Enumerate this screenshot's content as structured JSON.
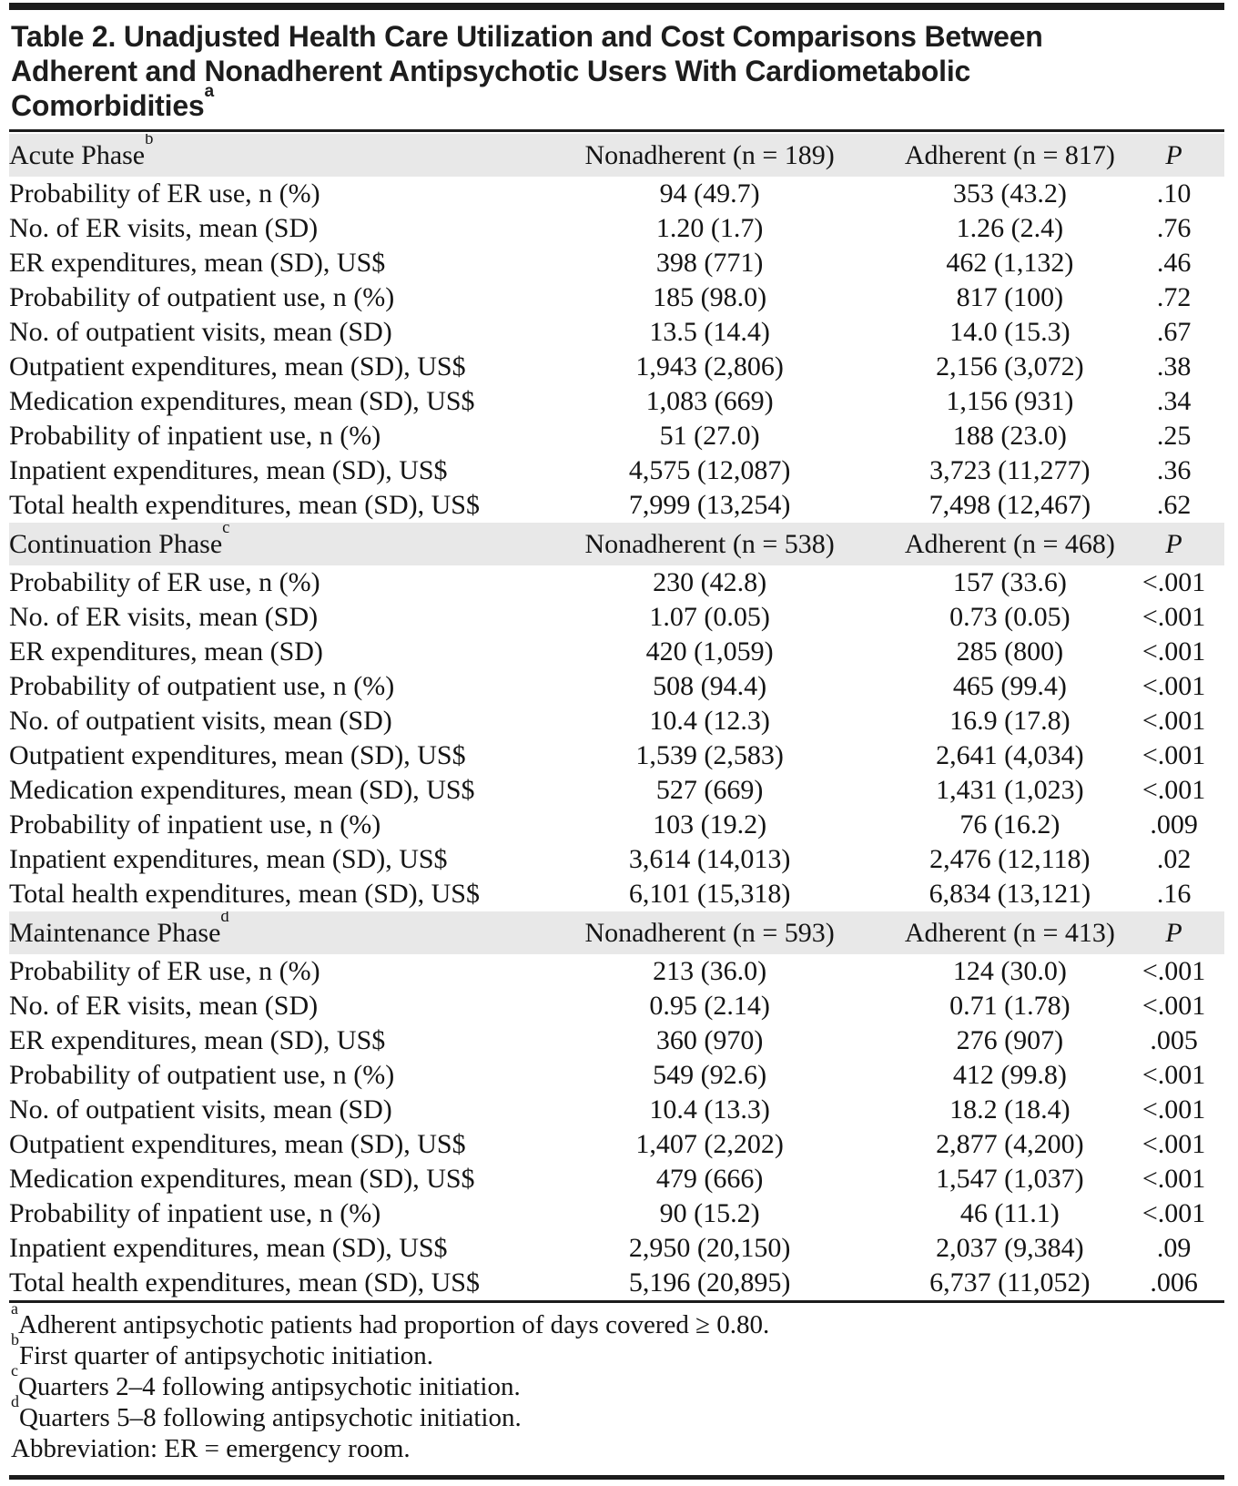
{
  "title_lines": [
    "Table 2. Unadjusted Health Care Utilization and Cost Comparisons Between",
    "Adherent and Nonadherent Antipsychotic Users With Cardiometabolic",
    "Comorbidities"
  ],
  "title_superscript": "a",
  "sections": [
    {
      "name": "Acute Phase",
      "superscript": "b",
      "nonadherent_header": "Nonadherent (n = 189)",
      "adherent_header": "Adherent (n = 817)",
      "p_header": "P",
      "rows": [
        {
          "label": "Probability of ER use, n (%)",
          "nonadherent": "94 (49.7)",
          "adherent": "353 (43.2)",
          "p": ".10"
        },
        {
          "label": "No. of ER visits, mean (SD)",
          "nonadherent": "1.20 (1.7)",
          "adherent": "1.26 (2.4)",
          "p": ".76"
        },
        {
          "label": "ER expenditures, mean (SD), US$",
          "nonadherent": "398 (771)",
          "adherent": "462 (1,132)",
          "p": ".46"
        },
        {
          "label": "Probability of outpatient use, n (%)",
          "nonadherent": "185 (98.0)",
          "adherent": "817 (100)",
          "p": ".72"
        },
        {
          "label": "No. of outpatient visits, mean (SD)",
          "nonadherent": "13.5 (14.4)",
          "adherent": "14.0 (15.3)",
          "p": ".67"
        },
        {
          "label": "Outpatient expenditures, mean (SD), US$",
          "nonadherent": "1,943 (2,806)",
          "adherent": "2,156 (3,072)",
          "p": ".38"
        },
        {
          "label": "Medication expenditures, mean (SD), US$",
          "nonadherent": "1,083 (669)",
          "adherent": "1,156 (931)",
          "p": ".34"
        },
        {
          "label": "Probability of inpatient use, n (%)",
          "nonadherent": "51 (27.0)",
          "adherent": "188 (23.0)",
          "p": ".25"
        },
        {
          "label": "Inpatient expenditures, mean (SD), US$",
          "nonadherent": "4,575 (12,087)",
          "adherent": "3,723 (11,277)",
          "p": ".36"
        },
        {
          "label": "Total health expenditures, mean (SD), US$",
          "nonadherent": "7,999 (13,254)",
          "adherent": "7,498 (12,467)",
          "p": ".62"
        }
      ]
    },
    {
      "name": "Continuation Phase",
      "superscript": "c",
      "nonadherent_header": "Nonadherent (n = 538)",
      "adherent_header": "Adherent (n = 468)",
      "p_header": "P",
      "rows": [
        {
          "label": "Probability of ER use, n (%)",
          "nonadherent": "230 (42.8)",
          "adherent": "157 (33.6)",
          "p": "<.001"
        },
        {
          "label": "No. of ER visits, mean (SD)",
          "nonadherent": "1.07 (0.05)",
          "adherent": "0.73 (0.05)",
          "p": "<.001"
        },
        {
          "label": "ER expenditures, mean (SD)",
          "nonadherent": "420 (1,059)",
          "adherent": "285 (800)",
          "p": "<.001"
        },
        {
          "label": "Probability of outpatient use, n (%)",
          "nonadherent": "508 (94.4)",
          "adherent": "465 (99.4)",
          "p": "<.001"
        },
        {
          "label": "No. of outpatient visits, mean (SD)",
          "nonadherent": "10.4 (12.3)",
          "adherent": "16.9 (17.8)",
          "p": "<.001"
        },
        {
          "label": "Outpatient expenditures, mean (SD), US$",
          "nonadherent": "1,539 (2,583)",
          "adherent": "2,641 (4,034)",
          "p": "<.001"
        },
        {
          "label": "Medication expenditures, mean (SD), US$",
          "nonadherent": "527 (669)",
          "adherent": "1,431 (1,023)",
          "p": "<.001"
        },
        {
          "label": "Probability of inpatient use, n (%)",
          "nonadherent": "103 (19.2)",
          "adherent": "76 (16.2)",
          "p": ".009"
        },
        {
          "label": "Inpatient expenditures, mean (SD), US$",
          "nonadherent": "3,614 (14,013)",
          "adherent": "2,476 (12,118)",
          "p": ".02"
        },
        {
          "label": "Total health expenditures, mean (SD), US$",
          "nonadherent": "6,101 (15,318)",
          "adherent": "6,834 (13,121)",
          "p": ".16"
        }
      ]
    },
    {
      "name": "Maintenance Phase",
      "superscript": "d",
      "nonadherent_header": "Nonadherent (n = 593)",
      "adherent_header": "Adherent (n = 413)",
      "p_header": "P",
      "rows": [
        {
          "label": "Probability of ER use, n (%)",
          "nonadherent": "213 (36.0)",
          "adherent": "124 (30.0)",
          "p": "<.001"
        },
        {
          "label": "No. of ER visits, mean (SD)",
          "nonadherent": "0.95 (2.14)",
          "adherent": "0.71 (1.78)",
          "p": "<.001"
        },
        {
          "label": "ER expenditures, mean (SD), US$",
          "nonadherent": "360 (970)",
          "adherent": "276 (907)",
          "p": ".005"
        },
        {
          "label": "Probability of outpatient use, n (%)",
          "nonadherent": "549 (92.6)",
          "adherent": "412 (99.8)",
          "p": "<.001"
        },
        {
          "label": "No. of outpatient visits, mean (SD)",
          "nonadherent": "10.4 (13.3)",
          "adherent": "18.2 (18.4)",
          "p": "<.001"
        },
        {
          "label": "Outpatient expenditures, mean (SD), US$",
          "nonadherent": "1,407 (2,202)",
          "adherent": "2,877 (4,200)",
          "p": "<.001"
        },
        {
          "label": "Medication expenditures, mean (SD), US$",
          "nonadherent": "479 (666)",
          "adherent": "1,547 (1,037)",
          "p": "<.001"
        },
        {
          "label": "Probability of inpatient use, n (%)",
          "nonadherent": "90 (15.2)",
          "adherent": "46 (11.1)",
          "p": "<.001"
        },
        {
          "label": "Inpatient expenditures, mean (SD), US$",
          "nonadherent": "2,950 (20,150)",
          "adherent": "2,037 (9,384)",
          "p": ".09"
        },
        {
          "label": "Total health expenditures, mean (SD), US$",
          "nonadherent": "5,196 (20,895)",
          "adherent": "6,737 (11,052)",
          "p": ".006"
        }
      ]
    }
  ],
  "footnotes": [
    {
      "marker": "a",
      "text": "Adherent antipsychotic patients had proportion of days covered ≥ 0.80."
    },
    {
      "marker": "b",
      "text": "First quarter of antipsychotic initiation."
    },
    {
      "marker": "c",
      "text": "Quarters 2–4 following antipsychotic initiation."
    },
    {
      "marker": "d",
      "text": "Quarters 5–8 following antipsychotic initiation."
    },
    {
      "marker": "",
      "text": "Abbreviation: ER = emergency room."
    }
  ],
  "colors": {
    "section_band": "#e8e8e8",
    "rule": "#1c1c1c",
    "text": "#141414"
  }
}
